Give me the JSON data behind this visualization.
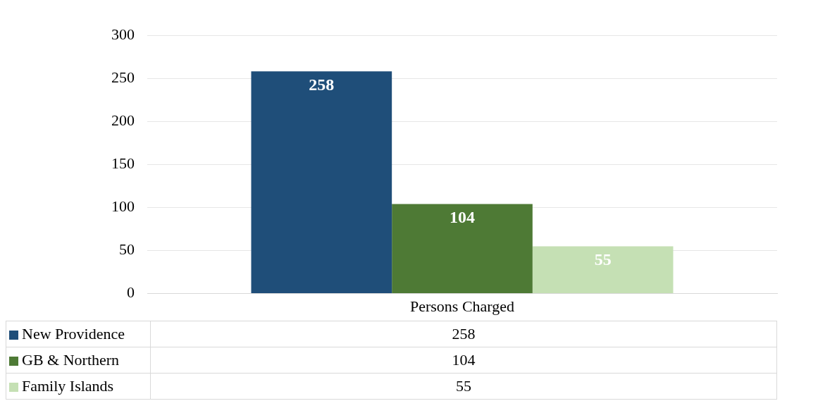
{
  "chart_data": {
    "type": "bar",
    "categories": [
      "Persons Charged"
    ],
    "series": [
      {
        "name": "New Providence",
        "color": "#1f4e79",
        "values": [
          258
        ]
      },
      {
        "name": "GB & Northern",
        "color": "#4e7a35",
        "values": [
          104
        ]
      },
      {
        "name": "Family Islands",
        "color": "#c5e0b4",
        "values": [
          55
        ]
      }
    ],
    "ylim": [
      0,
      300
    ],
    "yticks": [
      0,
      50,
      100,
      150,
      200,
      250,
      300
    ],
    "grid": "y",
    "annotations": [
      "258",
      "104",
      "55"
    ],
    "legend": "bottom",
    "data_labels": true
  }
}
